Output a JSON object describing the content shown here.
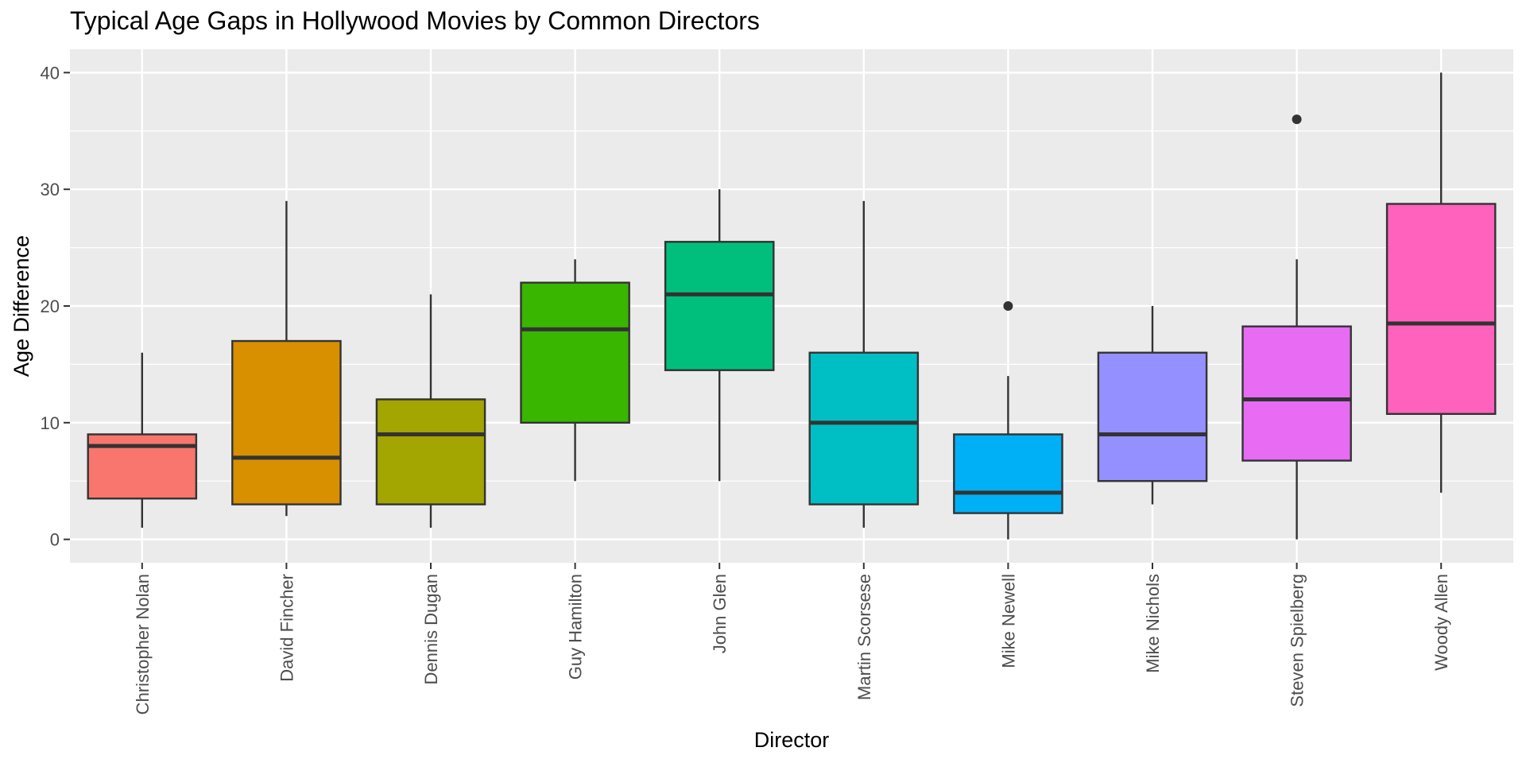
{
  "chart_data": {
    "type": "box",
    "title": "Typical Age Gaps in Hollywood Movies by Common Directors",
    "xlabel": "Director",
    "ylabel": "Age Difference",
    "ylim": [
      -2,
      42
    ],
    "yticks": [
      0,
      10,
      20,
      30,
      40
    ],
    "grid": true,
    "legend": "none",
    "categories": [
      "Christopher Nolan",
      "David Fincher",
      "Dennis Dugan",
      "Guy Hamilton",
      "John Glen",
      "Martin Scorsese",
      "Mike Newell",
      "Mike Nichols",
      "Steven Spielberg",
      "Woody Allen"
    ],
    "boxes": [
      {
        "min": 1,
        "q1": 3.5,
        "median": 8,
        "q3": 9,
        "max": 16,
        "outliers": []
      },
      {
        "min": 2,
        "q1": 3,
        "median": 7,
        "q3": 17,
        "max": 29,
        "outliers": []
      },
      {
        "min": 1,
        "q1": 3,
        "median": 9,
        "q3": 12,
        "max": 21,
        "outliers": []
      },
      {
        "min": 5,
        "q1": 10,
        "median": 18,
        "q3": 22,
        "max": 24,
        "outliers": []
      },
      {
        "min": 5,
        "q1": 14.5,
        "median": 21,
        "q3": 25.5,
        "max": 30,
        "outliers": []
      },
      {
        "min": 1,
        "q1": 3,
        "median": 10,
        "q3": 16,
        "max": 29,
        "outliers": []
      },
      {
        "min": 0,
        "q1": 2.25,
        "median": 4,
        "q3": 9,
        "max": 14,
        "outliers": [
          20
        ]
      },
      {
        "min": 3,
        "q1": 5,
        "median": 9,
        "q3": 16,
        "max": 20,
        "outliers": []
      },
      {
        "min": 0,
        "q1": 6.75,
        "median": 12,
        "q3": 18.25,
        "max": 24,
        "outliers": [
          36
        ]
      },
      {
        "min": 4,
        "q1": 10.75,
        "median": 18.5,
        "q3": 28.75,
        "max": 40,
        "outliers": []
      }
    ],
    "colors": [
      "#F8766D",
      "#D89000",
      "#A3A500",
      "#39B600",
      "#00BF7D",
      "#00BFC4",
      "#00B0F6",
      "#9590FF",
      "#E76BF3",
      "#FF62BC"
    ]
  }
}
